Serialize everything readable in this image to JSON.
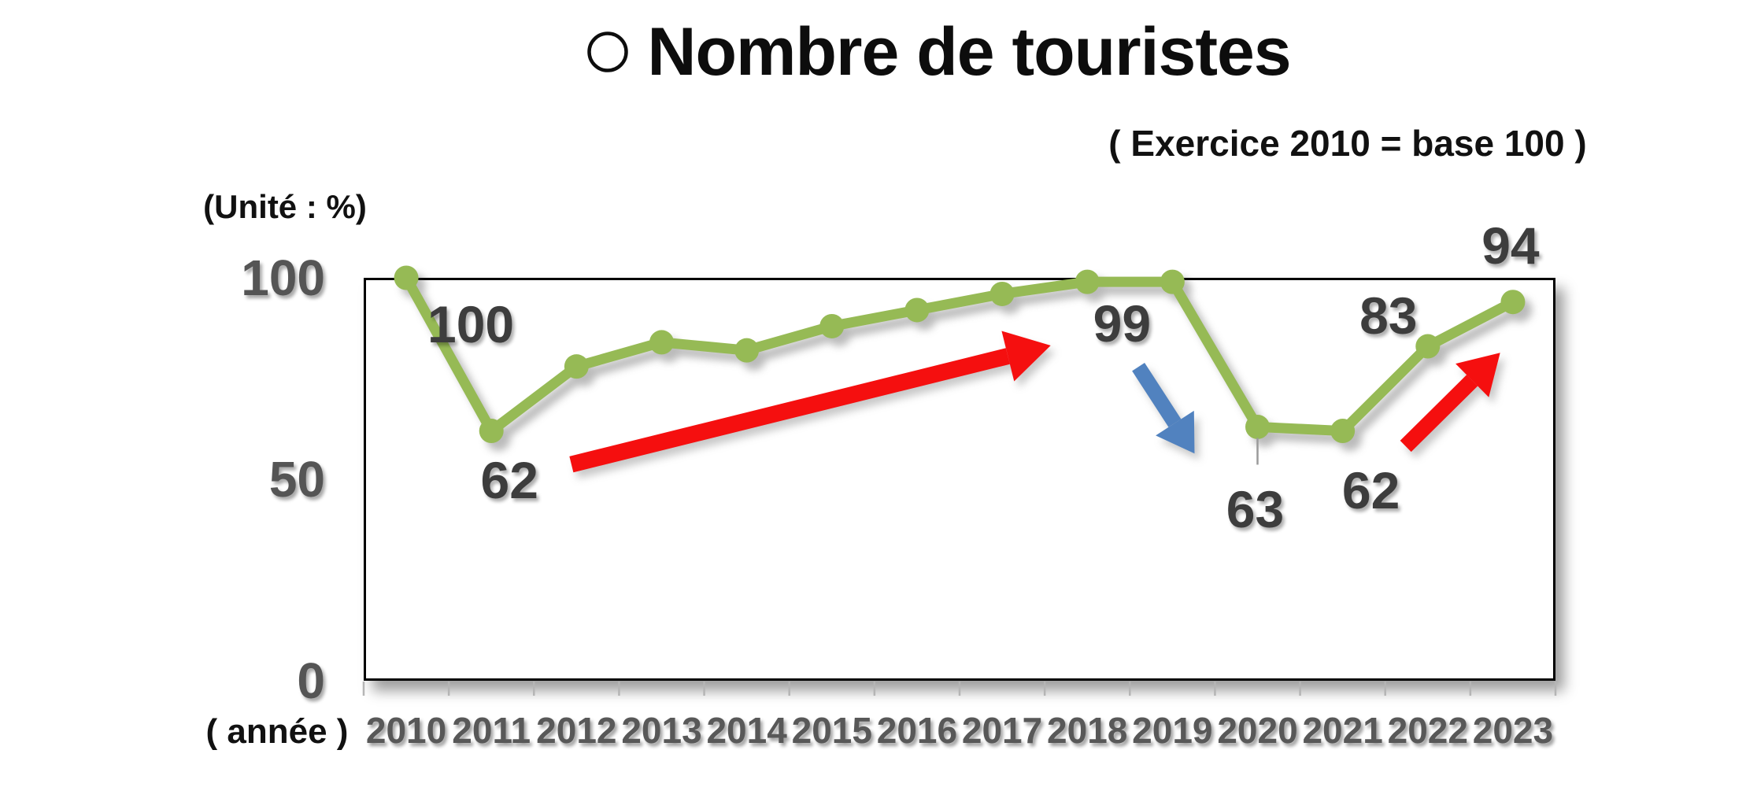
{
  "chart_data": {
    "type": "line",
    "title": "Nombre de touristes",
    "title_bullet": "circle-outline",
    "subtitle": "( Exercice 2010 = base 100 )",
    "unit_label": "(Unité : %)",
    "xaxis_label": "( année )",
    "categories": [
      "2010",
      "2011",
      "2012",
      "2013",
      "2014",
      "2015",
      "2016",
      "2017",
      "2018",
      "2019",
      "2020",
      "2021",
      "2022",
      "2023"
    ],
    "values": [
      100,
      62,
      78,
      84,
      82,
      88,
      92,
      96,
      99,
      99,
      63,
      62,
      83,
      94
    ],
    "point_labels": {
      "2010": "100",
      "2011": "62",
      "2019": "99",
      "2020": "63",
      "2021": "62",
      "2022": "83",
      "2023": "94"
    },
    "ylim": [
      0,
      100
    ],
    "yticks": [
      100,
      50,
      0
    ],
    "grid": false,
    "legend": "none",
    "line_color": "#96ba55",
    "marker_color": "#96ba55",
    "label_color": "#3d3d3d",
    "axis_tick_color": "#585858",
    "plot_border_color": "#000000",
    "annotations": [
      {
        "id": "trend-up-2012-2018",
        "type": "arrow",
        "color": "#f50f0f",
        "from": {
          "x": 2011.94,
          "y": 53.7
        },
        "to": {
          "x": 2017.57,
          "y": 83.2
        }
      },
      {
        "id": "trend-down-2019-2020",
        "type": "arrow",
        "color": "#5182bf",
        "from": {
          "x": 2018.6,
          "y": 77.9
        },
        "to": {
          "x": 2019.26,
          "y": 56.4
        }
      },
      {
        "id": "trend-up-2021-2023",
        "type": "arrow",
        "color": "#f50f0f",
        "from": {
          "x": 2021.74,
          "y": 58.2
        },
        "to": {
          "x": 2022.85,
          "y": 81.4
        }
      }
    ]
  }
}
